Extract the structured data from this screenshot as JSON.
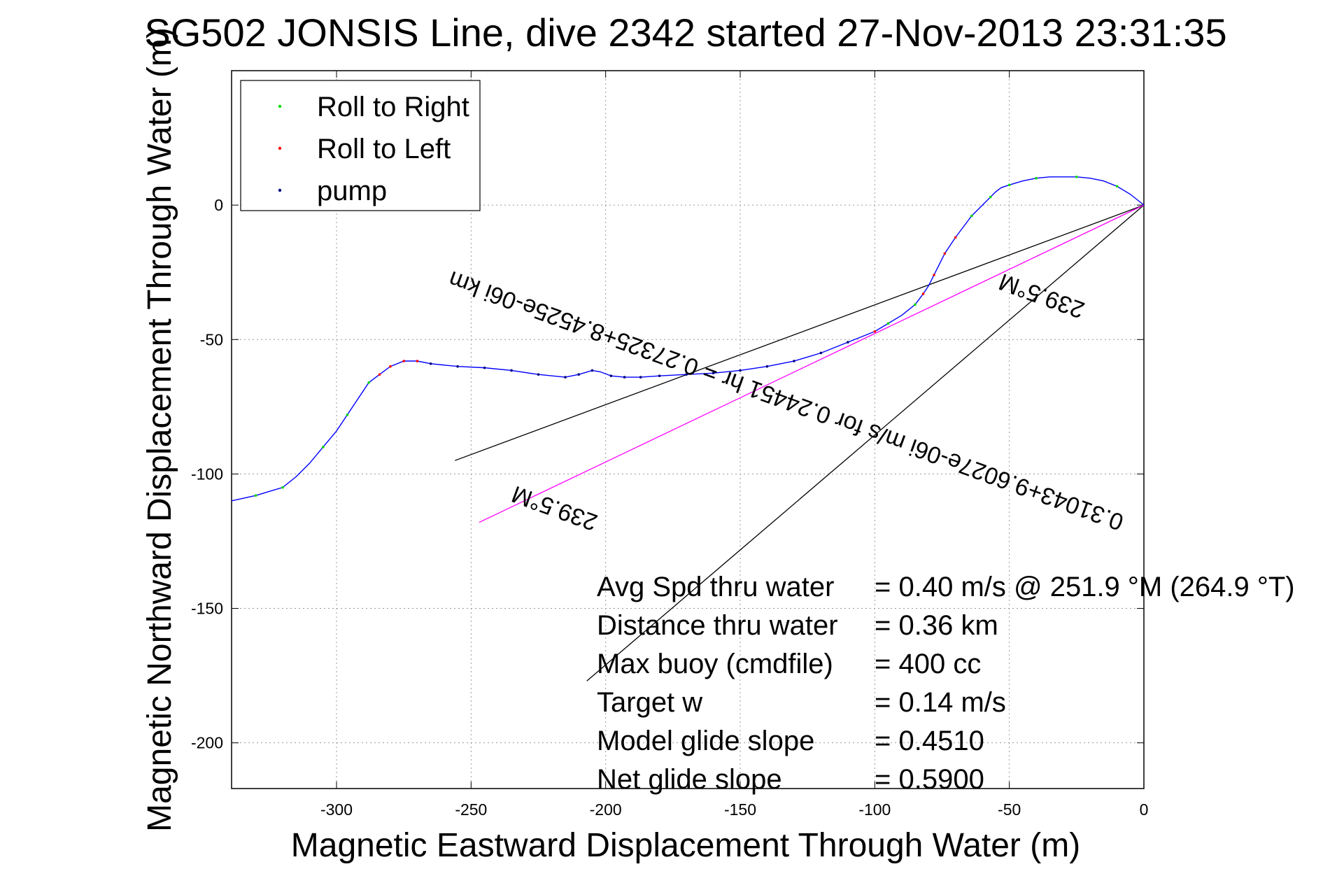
{
  "chart_data": {
    "type": "line",
    "title": "SG502 JONSIS Line, dive 2342 started 27-Nov-2013 23:31:35",
    "xlabel": "Magnetic Eastward Displacement Through Water (m)",
    "ylabel": "Magnetic Northward Displacement Through Water (m)",
    "xlim": [
      -339,
      0
    ],
    "ylim": [
      -217,
      50
    ],
    "x_ticks": [
      -300,
      -250,
      -200,
      -150,
      -100,
      -50,
      0
    ],
    "y_ticks": [
      0,
      -50,
      -100,
      -150,
      -200
    ],
    "grid": true,
    "legend_position": "top-left",
    "legend": [
      {
        "label": "Roll to Right",
        "color": "#00dd00"
      },
      {
        "label": "Roll to Left",
        "color": "#ff0000"
      },
      {
        "label": "pump",
        "color": "#000080"
      }
    ],
    "track": {
      "color": "#0000ff",
      "x": [
        -339,
        -330,
        -320,
        -315,
        -310,
        -305,
        -300,
        -296,
        -292,
        -288,
        -284,
        -280,
        -275,
        -270,
        -265,
        -255,
        -245,
        -235,
        -225,
        -215,
        -210,
        -205,
        -202,
        -198,
        -193,
        -187,
        -180,
        -170,
        -160,
        -150,
        -140,
        -130,
        -120,
        -110,
        -100,
        -95,
        -90,
        -85,
        -82,
        -80,
        -78,
        -76,
        -74,
        -72,
        -70,
        -67,
        -64,
        -60,
        -57,
        -55,
        -53,
        -50,
        -45,
        -40,
        -35,
        -30,
        -25,
        -20,
        -15,
        -10,
        -5,
        0
      ],
      "y": [
        -110,
        -108,
        -105,
        -101,
        -96,
        -90,
        -84,
        -78,
        -72,
        -66,
        -63,
        -60,
        -58,
        -58,
        -59,
        -60,
        -60.5,
        -61.5,
        -63,
        -64,
        -63,
        -61.5,
        -62,
        -63.5,
        -64,
        -64,
        -63.5,
        -63,
        -62.5,
        -61.5,
        -60,
        -58,
        -55,
        -51,
        -47,
        -44,
        -41,
        -37,
        -33,
        -30,
        -26,
        -22,
        -18,
        -15,
        -12,
        -8,
        -4,
        0,
        3,
        5,
        6.5,
        7.5,
        9,
        10,
        10.5,
        10.5,
        10.5,
        10,
        9,
        7,
        4,
        0
      ]
    },
    "markers": [
      {
        "series": "Roll to Right",
        "color": "#00dd00",
        "x": [
          -330,
          -320,
          -305,
          -296,
          -288,
          -95,
          -85,
          -64,
          -57,
          -50,
          -40,
          -25,
          -10
        ],
        "y": [
          -108,
          -105,
          -90,
          -78,
          -66,
          -44,
          -37,
          -4,
          3,
          7.5,
          10,
          10.5,
          7
        ]
      },
      {
        "series": "Roll to Left",
        "color": "#ff0000",
        "x": [
          -284,
          -280,
          -275,
          -270,
          -100,
          -82,
          -78,
          -74,
          -70
        ],
        "y": [
          -63,
          -60,
          -58,
          -58,
          -47,
          -33,
          -26,
          -18,
          -12
        ]
      },
      {
        "series": "pump",
        "color": "#000080",
        "x": [
          -265,
          -255,
          -245,
          -235,
          -225,
          -215,
          -210,
          -205,
          -198,
          -193,
          -187,
          -180,
          -170,
          -160,
          -150,
          -140,
          -130,
          -120,
          -110
        ],
        "y": [
          -59,
          -60,
          -60.5,
          -61.5,
          -63,
          -64,
          -63,
          -61.5,
          -63.5,
          -64,
          -64,
          -63.5,
          -63,
          -62.5,
          -61.5,
          -60,
          -58,
          -55,
          -51
        ]
      }
    ],
    "heading_lines": [
      {
        "x": [
          0,
          -256
        ],
        "y": [
          0,
          -95
        ],
        "color": "#000000"
      },
      {
        "x": [
          0,
          -207
        ],
        "y": [
          0,
          -177
        ],
        "color": "#000000"
      },
      {
        "x": [
          0,
          -247
        ],
        "y": [
          0,
          -118
        ],
        "color": "#ff00ff"
      }
    ],
    "annotations": [
      {
        "text": "239.5°M",
        "x": -37,
        "y": -31,
        "rotation": 200
      },
      {
        "text": "0.31043+9.6027e-06i m/s for 0.24451 hr = 0.27325+8.4525e-06i km",
        "x": -132,
        "y": -70,
        "rotation": 200
      },
      {
        "text": "239.5°M",
        "x": -218,
        "y": -110,
        "rotation": 200
      }
    ],
    "stats": [
      {
        "label": "Avg Spd thru water",
        "value": "=  0.40 m/s @ 251.9 °M (264.9 °T)"
      },
      {
        "label": "Distance thru water",
        "value": "=  0.36 km"
      },
      {
        "label": "Max buoy (cmdfile)",
        "value": "= 400 cc"
      },
      {
        "label": "Target w",
        "value": "= 0.14 m/s"
      },
      {
        "label": "Model glide slope",
        "value": "= 0.4510"
      },
      {
        "label": "Net glide slope",
        "value": "= 0.5900"
      }
    ]
  }
}
